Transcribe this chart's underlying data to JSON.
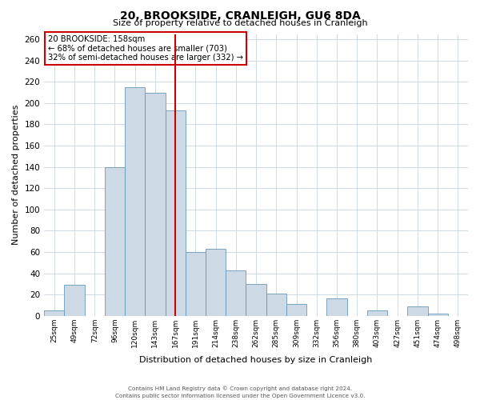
{
  "title": "20, BROOKSIDE, CRANLEIGH, GU6 8DA",
  "subtitle": "Size of property relative to detached houses in Cranleigh",
  "xlabel": "Distribution of detached houses by size in Cranleigh",
  "ylabel": "Number of detached properties",
  "bar_color": "#cdd9e5",
  "bar_edge_color": "#6699bb",
  "categories": [
    "25sqm",
    "49sqm",
    "72sqm",
    "96sqm",
    "120sqm",
    "143sqm",
    "167sqm",
    "191sqm",
    "214sqm",
    "238sqm",
    "262sqm",
    "285sqm",
    "309sqm",
    "332sqm",
    "356sqm",
    "380sqm",
    "403sqm",
    "427sqm",
    "451sqm",
    "474sqm",
    "498sqm"
  ],
  "bar_heights": [
    5,
    29,
    0,
    140,
    215,
    210,
    193,
    60,
    63,
    43,
    30,
    21,
    11,
    0,
    16,
    0,
    5,
    0,
    9,
    2,
    0
  ],
  "vline_index": 6,
  "vline_color": "#cc0000",
  "annotation_title": "20 BROOKSIDE: 158sqm",
  "annotation_line1": "← 68% of detached houses are smaller (703)",
  "annotation_line2": "32% of semi-detached houses are larger (332) →",
  "annotation_box_color": "#cc0000",
  "ylim": [
    0,
    265
  ],
  "yticks": [
    0,
    20,
    40,
    60,
    80,
    100,
    120,
    140,
    160,
    180,
    200,
    220,
    240,
    260
  ],
  "footer1": "Contains HM Land Registry data © Crown copyright and database right 2024.",
  "footer2": "Contains public sector information licensed under the Open Government Licence v3.0.",
  "bg_color": "#ffffff",
  "grid_color": "#c8d4e0"
}
